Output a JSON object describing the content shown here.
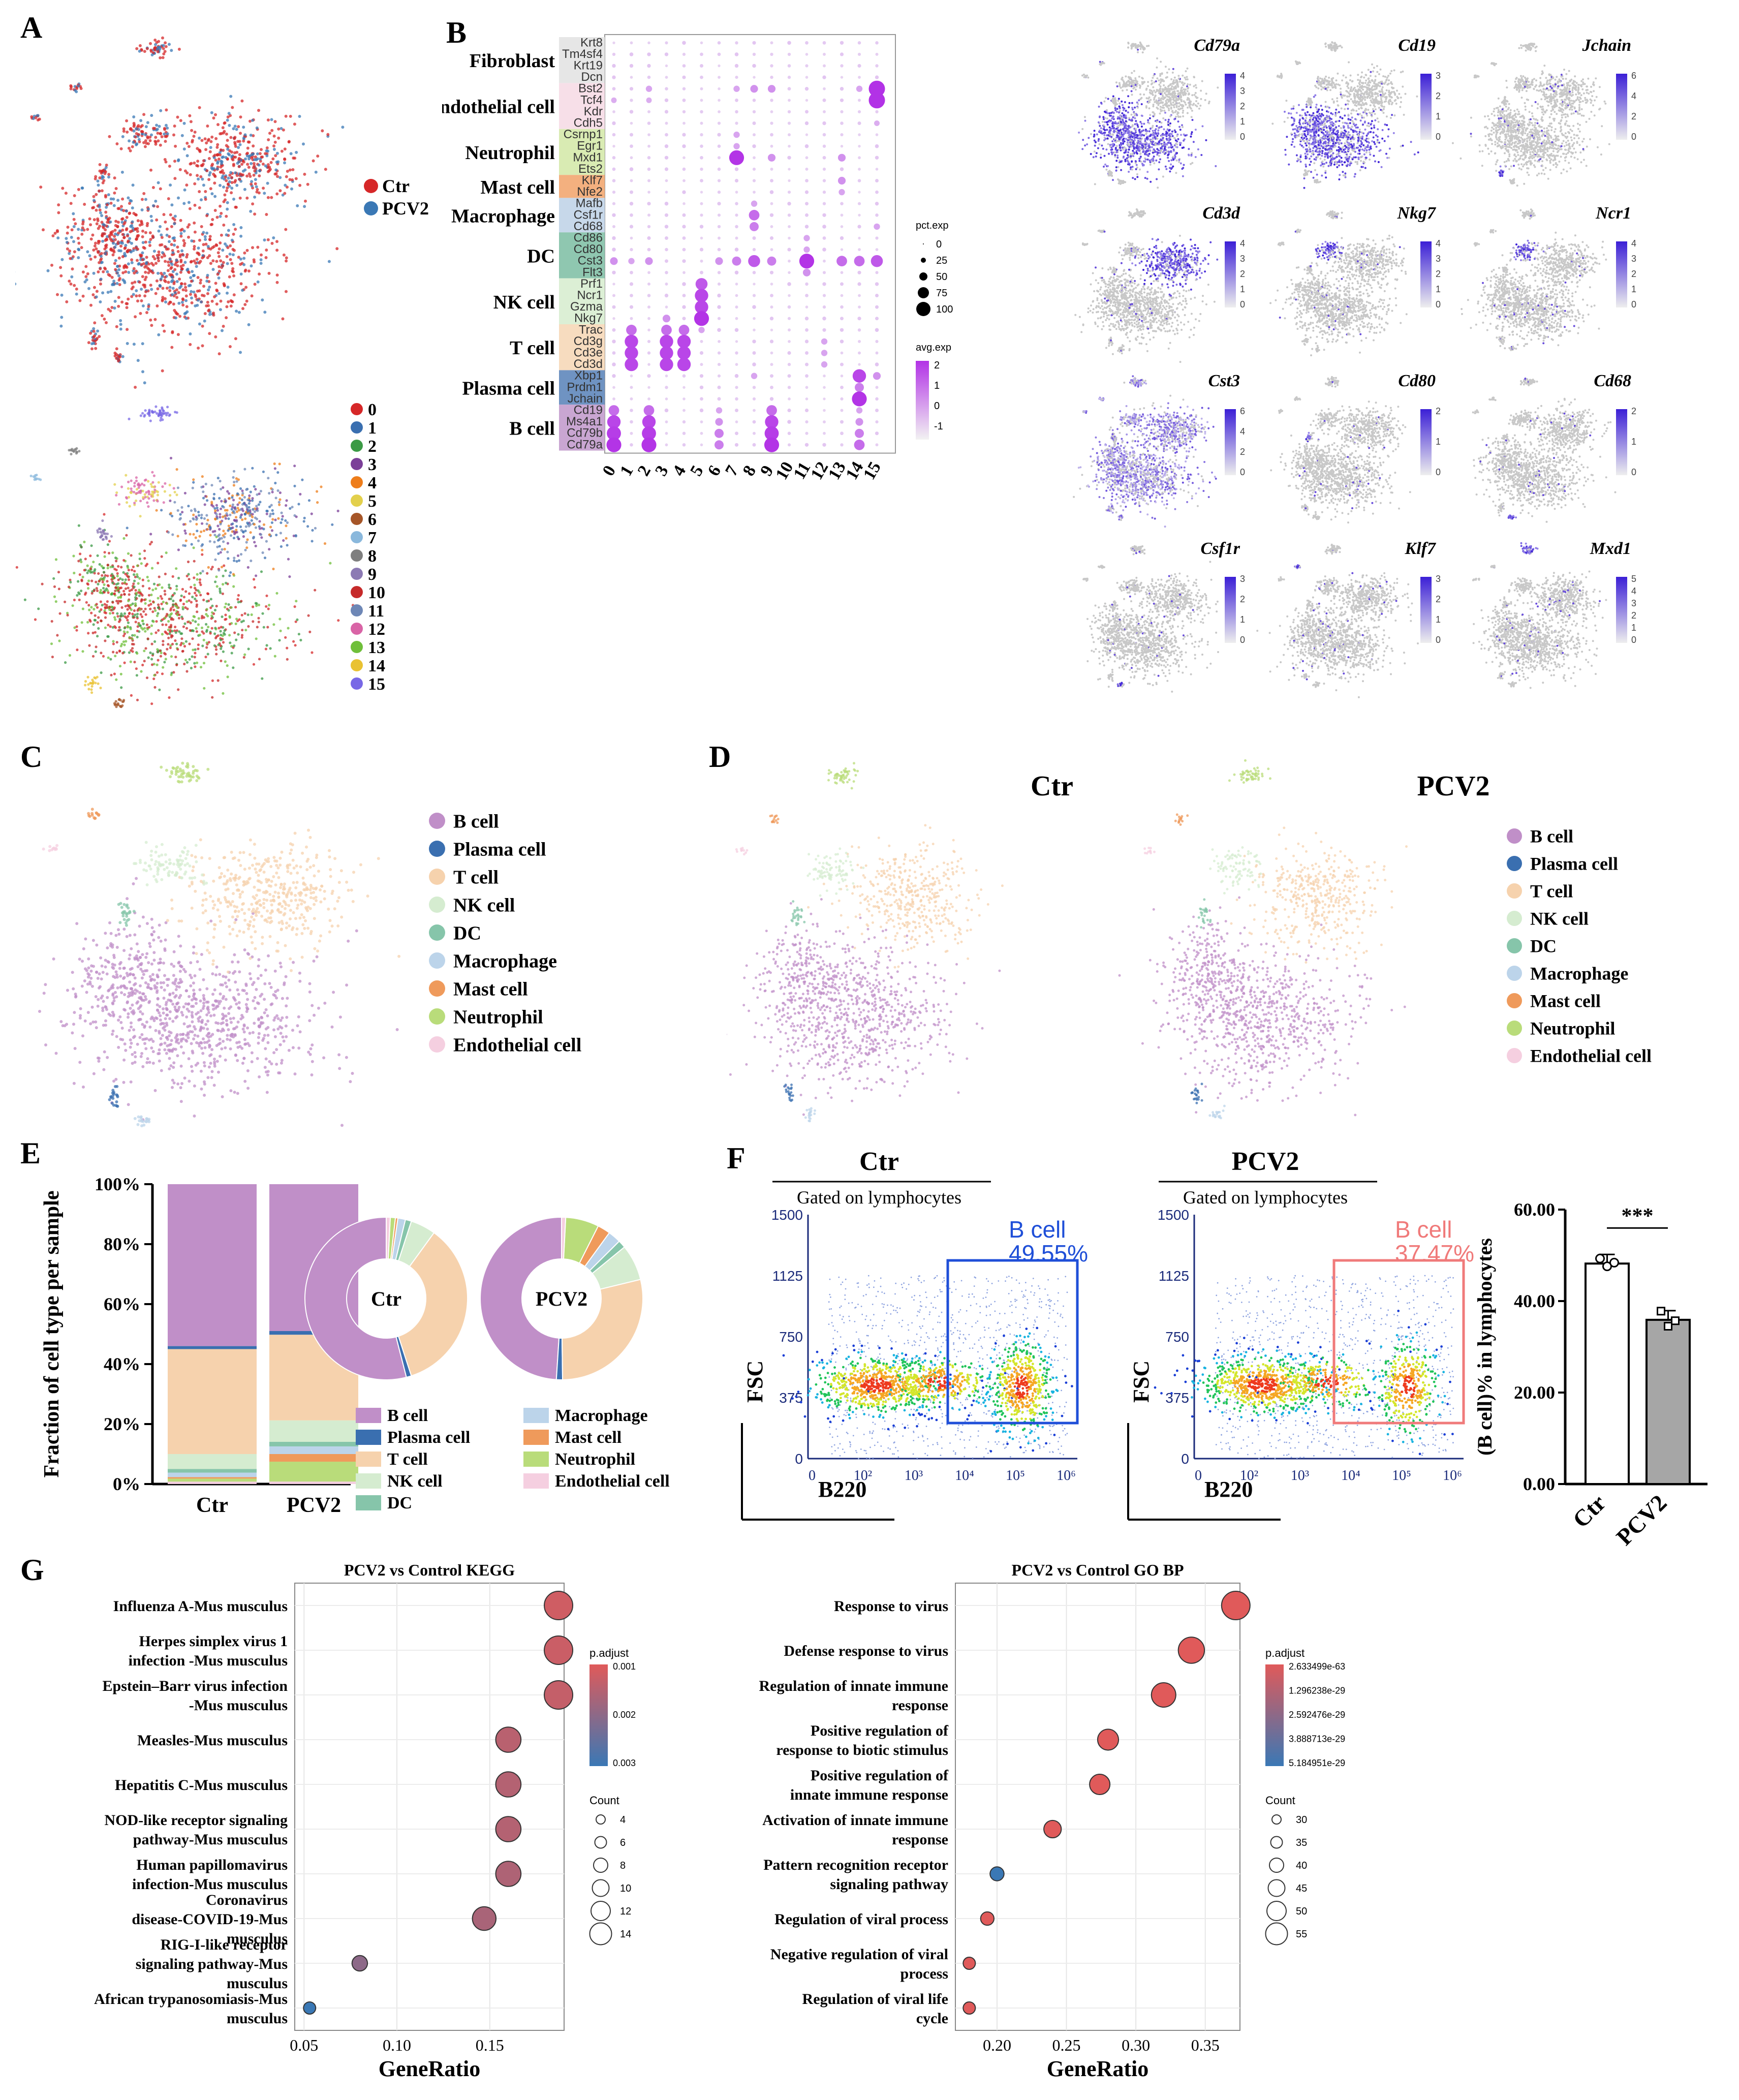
{
  "panel_letters": {
    "a": "A",
    "b": "B",
    "c": "C",
    "d": "D",
    "e": "E",
    "f": "F",
    "g": "G"
  },
  "legend_a": {
    "ctr": "Ctr",
    "pcv2": "PCV2",
    "clusters": [
      "0",
      "1",
      "2",
      "3",
      "4",
      "5",
      "6",
      "7",
      "8",
      "9",
      "10",
      "11",
      "12",
      "13",
      "14",
      "15"
    ],
    "cluster_colors": [
      "#d62728",
      "#3a6fb0",
      "#3b9a45",
      "#7b3f98",
      "#ee7d1b",
      "#e3d04c",
      "#a65628",
      "#8ab8dc",
      "#7f7f7f",
      "#8c7ab4",
      "#c62a2a",
      "#6e87b6",
      "#d964a6",
      "#6fbf3a",
      "#e9c232",
      "#7868e6"
    ]
  },
  "colors": {
    "ctr": "#d62728",
    "pcv2": "#3a78b5",
    "grey_cells": "#c8c8c8",
    "dot_hi": "#b232e6",
    "dot_lo": "#eadcf3",
    "feature_hi": "#3b1fd6"
  },
  "dotplot": {
    "groups": [
      {
        "label": "Fibroblast",
        "color": "#e6e6e6",
        "genes": [
          "Krt8",
          "Tm4sf4",
          "Krt19",
          "Dcn"
        ]
      },
      {
        "label": "Endothelial cell",
        "color": "#f7dfe8",
        "genes": [
          "Bst2",
          "Tcf4",
          "Kdr",
          "Cdh5"
        ]
      },
      {
        "label": "Neutrophil",
        "color": "#d9ebb3",
        "genes": [
          "Csrnp1",
          "Egr1",
          "Mxd1",
          "Ets2"
        ]
      },
      {
        "label": "Mast cell",
        "color": "#f3b07f",
        "genes": [
          "Klf7",
          "Nfe2"
        ]
      },
      {
        "label": "Macrophage",
        "color": "#c7d8ea",
        "genes": [
          "Mafb",
          "Csf1r",
          "Cd68"
        ]
      },
      {
        "label": "DC",
        "color": "#8fc7b0",
        "genes": [
          "Cd86",
          "Cd80",
          "Cst3",
          "Flt3"
        ]
      },
      {
        "label": "NK cell",
        "color": "#dcefd5",
        "genes": [
          "Prf1",
          "Ncr1",
          "Gzma",
          "Nkg7"
        ]
      },
      {
        "label": "T cell",
        "color": "#f7dcbf",
        "genes": [
          "Trac",
          "Cd3g",
          "Cd3e",
          "Cd3d"
        ]
      },
      {
        "label": "Plasma cell",
        "color": "#6f93c2",
        "genes": [
          "Xbp1",
          "Prdm1",
          "Jchain"
        ]
      },
      {
        "label": "B cell",
        "color": "#c9a6d2",
        "genes": [
          "Cd19",
          "Ms4a1",
          "Cd79b",
          "Cd79a"
        ]
      }
    ],
    "clusters": [
      "0",
      "1",
      "2",
      "3",
      "4",
      "5",
      "6",
      "7",
      "8",
      "9",
      "10",
      "11",
      "12",
      "13",
      "14",
      "15"
    ],
    "pct_exp_title": "pct.exp",
    "pct_exp_ticks": [
      "0",
      "25",
      "50",
      "75",
      "100"
    ],
    "avg_exp_title": "avg.exp",
    "avg_exp_ticks": [
      "2",
      "1",
      "0",
      "-1"
    ]
  },
  "feature_plots": [
    {
      "gene": "Cd79a",
      "ticks": [
        "4",
        "3",
        "2",
        "1",
        "0"
      ]
    },
    {
      "gene": "Cd19",
      "ticks": [
        "3",
        "2",
        "1",
        "0"
      ]
    },
    {
      "gene": "Jchain",
      "ticks": [
        "6",
        "4",
        "2",
        "0"
      ]
    },
    {
      "gene": "Cd3d",
      "ticks": [
        "4",
        "3",
        "2",
        "1",
        "0"
      ]
    },
    {
      "gene": "Nkg7",
      "ticks": [
        "4",
        "3",
        "2",
        "1",
        "0"
      ]
    },
    {
      "gene": "Ncr1",
      "ticks": [
        "4",
        "3",
        "2",
        "1",
        "0"
      ]
    },
    {
      "gene": "Cst3",
      "ticks": [
        "6",
        "4",
        "2",
        "0"
      ]
    },
    {
      "gene": "Cd80",
      "ticks": [
        "2",
        "1",
        "0"
      ]
    },
    {
      "gene": "Cd68",
      "ticks": [
        "2",
        "1",
        "0"
      ]
    },
    {
      "gene": "Csf1r",
      "ticks": [
        "3",
        "2",
        "1",
        "0"
      ]
    },
    {
      "gene": "Klf7",
      "ticks": [
        "3",
        "2",
        "1",
        "0"
      ]
    },
    {
      "gene": "Mxd1",
      "ticks": [
        "5",
        "4",
        "3",
        "2",
        "1",
        "0"
      ]
    }
  ],
  "cell_types": [
    {
      "name": "B cell",
      "color": "#c08fc8"
    },
    {
      "name": "Plasma cell",
      "color": "#3a6fb0"
    },
    {
      "name": "T cell",
      "color": "#f6d2ad"
    },
    {
      "name": "NK cell",
      "color": "#d5ecd0"
    },
    {
      "name": "DC",
      "color": "#86c5aa"
    },
    {
      "name": "Macrophage",
      "color": "#bcd4ea"
    },
    {
      "name": "Mast cell",
      "color": "#ef9a5b"
    },
    {
      "name": "Neutrophil",
      "color": "#b9dc7a"
    },
    {
      "name": "Endothelial cell",
      "color": "#f5cfe0"
    }
  ],
  "panel_d": {
    "ctr_title": "Ctr",
    "pcv2_title": "PCV2"
  },
  "chart_data": [
    {
      "type": "bar",
      "id": "E-stacked",
      "ylabel": "Fraction of cell type per sample",
      "categories": [
        "Ctr",
        "PCV2"
      ],
      "yticks": [
        "0%",
        "20%",
        "40%",
        "60%",
        "80%",
        "100%"
      ],
      "series": [
        {
          "name": "B cell",
          "values": [
            54,
            48
          ]
        },
        {
          "name": "Plasma cell",
          "values": [
            1,
            1.2
          ]
        },
        {
          "name": "T cell",
          "values": [
            35,
            28
          ]
        },
        {
          "name": "NK cell",
          "values": [
            5,
            7
          ]
        },
        {
          "name": "DC",
          "values": [
            1.2,
            1.5
          ]
        },
        {
          "name": "Macrophage",
          "values": [
            1.5,
            2.5
          ]
        },
        {
          "name": "Mast cell",
          "values": [
            0.5,
            2.5
          ]
        },
        {
          "name": "Neutrophil",
          "values": [
            1,
            6.5
          ]
        },
        {
          "name": "Endothelial cell",
          "values": [
            0.8,
            0.8
          ]
        }
      ]
    },
    {
      "type": "pie",
      "id": "E-donut-ctr",
      "label": "Ctr",
      "values": [
        54,
        1,
        35,
        5,
        1.2,
        1.5,
        0.5,
        1,
        0.8
      ]
    },
    {
      "type": "pie",
      "id": "E-donut-pcv2",
      "label": "PCV2",
      "values": [
        48,
        1.2,
        28,
        7,
        1.5,
        2.5,
        2.5,
        6.5,
        0.8
      ]
    },
    {
      "type": "bar",
      "id": "F-bar",
      "categories": [
        "Ctr",
        "PCV2"
      ],
      "values": [
        48.2,
        35.9
      ],
      "points": [
        [
          49.3,
          47.6,
          48.4
        ],
        [
          37.8,
          34.5,
          35.7
        ]
      ],
      "ylim": [
        0,
        60
      ],
      "yticks": [
        "0.00",
        "20.00",
        "40.00",
        "60.00"
      ],
      "ylabel": "(B cell)% in lymphocytes",
      "significance": "***"
    },
    {
      "type": "scatter",
      "id": "G-kegg",
      "title": "PCV2 vs Control KEGG",
      "xlabel": "GeneRatio",
      "xticks": [
        "0.05",
        "0.10",
        "0.15"
      ],
      "xlim": [
        0.045,
        0.19
      ],
      "terms": [
        "Influenza A-Mus musculus",
        "Herpes simplex virus 1 infection -Mus musculus",
        "Epstein–Barr virus infection -Mus musculus",
        "Measles-Mus musculus",
        "Hepatitis C-Mus musculus",
        "NOD-like receptor signaling pathway-Mus musculus",
        "Human papillomavirus infection-Mus musculus",
        "Coronavirus disease-COVID-19-Mus musculus",
        "RIG-I-like receptor signaling pathway-Mus musculus",
        "African trypanosomiasis-Mus musculus"
      ],
      "x": [
        0.187,
        0.187,
        0.187,
        0.16,
        0.16,
        0.16,
        0.16,
        0.147,
        0.08,
        0.053
      ],
      "count": [
        14,
        14,
        14,
        12,
        12,
        12,
        12,
        11,
        6,
        4
      ],
      "padj": [
        0.0003,
        0.0004,
        0.0005,
        0.0007,
        0.0008,
        0.0008,
        0.0009,
        0.001,
        0.0015,
        0.003
      ],
      "padj_title": "p.adjust",
      "padj_ticks": [
        "0.001",
        "0.002",
        "0.003"
      ],
      "count_title": "Count",
      "count_ticks": [
        "4",
        "6",
        "8",
        "10",
        "12",
        "14"
      ]
    },
    {
      "type": "scatter",
      "id": "G-gobp",
      "title": "PCV2 vs Control GO BP",
      "xlabel": "GeneRatio",
      "xticks": [
        "0.20",
        "0.25",
        "0.30",
        "0.35"
      ],
      "xlim": [
        0.17,
        0.375
      ],
      "terms": [
        "Response to virus",
        "Defense response to virus",
        "Regulation of innate immune response",
        "Positive regulation of response to biotic stimulus",
        "Positive regulation of innate immune response",
        "Activation of innate immune response",
        "Pattern recognition receptor signaling pathway",
        "Regulation of viral process",
        "Negative regulation of viral process",
        "Regulation of viral life cycle"
      ],
      "x": [
        0.372,
        0.34,
        0.32,
        0.28,
        0.274,
        0.24,
        0.2,
        0.193,
        0.18,
        0.18
      ],
      "count": [
        55,
        51,
        48,
        42,
        41,
        36,
        30,
        29,
        27,
        27
      ],
      "padj": [
        0,
        0,
        0,
        0,
        0,
        0,
        5e-29,
        0,
        0,
        0
      ],
      "padj_title": "p.adjust",
      "padj_ticks": [
        "2.633499e-63",
        "1.296238e-29",
        "2.592476e-29",
        "3.888713e-29",
        "5.184951e-29"
      ],
      "count_title": "Count",
      "count_ticks": [
        "30",
        "35",
        "40",
        "45",
        "50",
        "55"
      ]
    }
  ],
  "flow": {
    "ctr_title": "Ctr",
    "pcv2_title": "PCV2",
    "gated": "Gated on lymphocytes",
    "gate_label": "B cell",
    "ctr_pct": "49.55%",
    "pcv2_pct": "37.47%",
    "yaxis": "FSC",
    "xaxis": "B220",
    "yticks": [
      "1500",
      "1125",
      "750",
      "375",
      "0"
    ],
    "xticks": [
      "0",
      "10²",
      "10³",
      "10⁴",
      "10⁵",
      "10⁶"
    ]
  }
}
